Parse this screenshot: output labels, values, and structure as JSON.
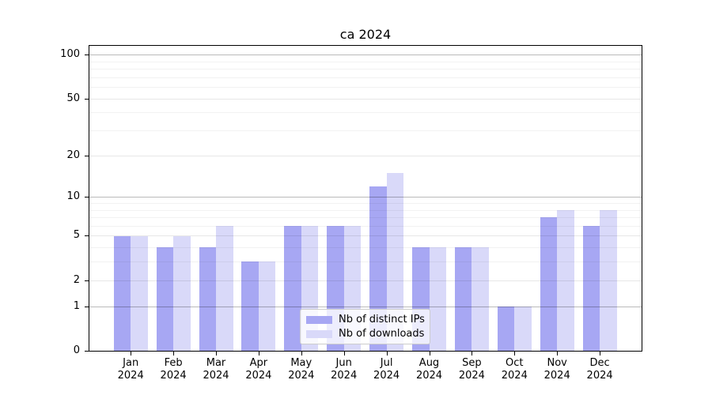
{
  "chart_data": {
    "type": "bar",
    "title": "ca 2024",
    "x_categories": [
      "Jan",
      "Feb",
      "Mar",
      "Apr",
      "May",
      "Jun",
      "Jul",
      "Aug",
      "Sep",
      "Oct",
      "Nov",
      "Dec"
    ],
    "x_sublabel": "2024",
    "series": [
      {
        "name": "Nb of distinct IPs",
        "color": "#a7a7f3",
        "values": [
          5,
          4,
          4,
          3,
          6,
          6,
          12,
          4,
          4,
          1,
          7,
          6
        ]
      },
      {
        "name": "Nb of downloads",
        "color": "#d9d9f9",
        "values": [
          5,
          5,
          6,
          3,
          6,
          6,
          15,
          4,
          4,
          1,
          8,
          8
        ]
      }
    ],
    "yscale": "log1p",
    "ylim": [
      0,
      117
    ],
    "y_major_ticks": [
      0,
      1,
      2,
      5,
      10,
      20,
      50,
      100
    ],
    "y_minor_gridlines": [
      3,
      4,
      6,
      7,
      8,
      9,
      30,
      40,
      60,
      70,
      80,
      90
    ],
    "y_emphasized_gridlines": [
      1,
      10,
      100
    ],
    "grid": true,
    "legend_position": "lower center",
    "colors": {
      "distinct_ips_bar": "#a7a7f3",
      "downloads_bar": "#d9d9f9",
      "grid_minor": "rgba(0,0,0,0.05)",
      "grid_major": "rgba(0,0,0,0.095)",
      "grid_emphasized": "rgba(0,0,0,0.27)",
      "spine": "#000000",
      "legend_border": "#cccccc"
    }
  }
}
